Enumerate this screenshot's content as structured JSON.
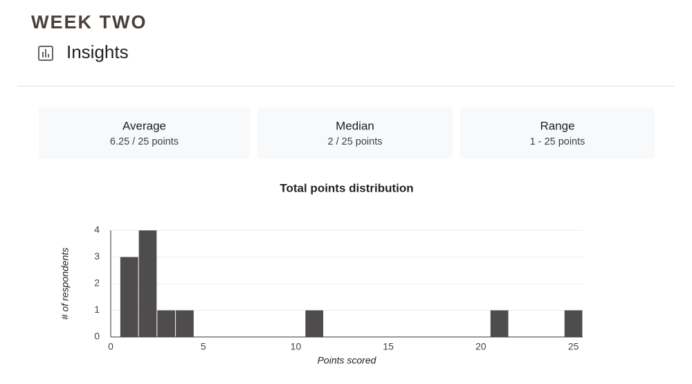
{
  "header": {
    "title": "WEEK TWO",
    "section": "Insights"
  },
  "stats": [
    {
      "label": "Average",
      "value": "6.25 / 25 points"
    },
    {
      "label": "Median",
      "value": "2 / 25 points"
    },
    {
      "label": "Range",
      "value": "1 - 25 points"
    }
  ],
  "chart_data": {
    "type": "bar",
    "title": "Total points distribution",
    "x_label": "Points scored",
    "y_label": "# of respondents",
    "x": [
      1,
      2,
      3,
      4,
      11,
      21,
      25
    ],
    "values": [
      3,
      4,
      1,
      1,
      1,
      1,
      1
    ],
    "color": "#4f4c4d",
    "xlim": [
      0,
      25.5
    ],
    "xticks": [
      0,
      5,
      10,
      15,
      20,
      25
    ],
    "ylim": [
      0,
      4
    ],
    "yticks": [
      0,
      1,
      2,
      3,
      4
    ],
    "grid": true
  }
}
